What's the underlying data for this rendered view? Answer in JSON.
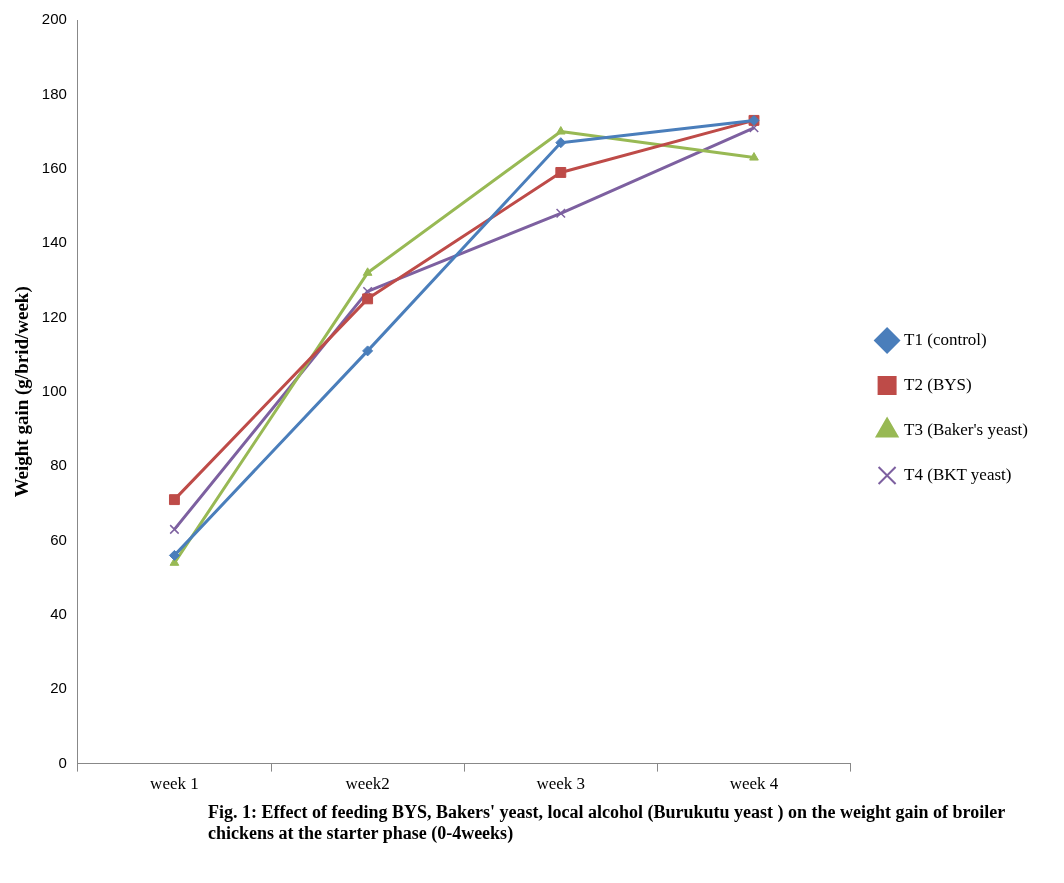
{
  "chart_data": {
    "type": "line",
    "ylabel": "Weight gain (g/brid/week)",
    "categories": [
      "week 1",
      "week2",
      "week 3",
      "week 4"
    ],
    "series": [
      {
        "name": "T1 (control)",
        "color": "#4a7ebb",
        "marker": "diamond",
        "values": [
          56,
          111,
          167,
          173
        ]
      },
      {
        "name": "T2 (BYS)",
        "color": "#be4b48",
        "marker": "square",
        "values": [
          71,
          125,
          159,
          173
        ]
      },
      {
        "name": "T3 (Baker's yeast)",
        "color": "#98b954",
        "marker": "triangle",
        "values": [
          54,
          132,
          170,
          163
        ]
      },
      {
        "name": "T4 (BKT yeast)",
        "color": "#7d60a0",
        "marker": "cross",
        "values": [
          63,
          127,
          148,
          171
        ]
      }
    ],
    "ylim": [
      0,
      200
    ],
    "yticks": [
      0,
      20,
      40,
      60,
      80,
      100,
      120,
      140,
      160,
      180,
      200
    ],
    "grid": false,
    "legend": "right",
    "line_style": "solid",
    "annotations": [
      "Fig. 1: Effect of feeding BYS, Bakers' yeast, local alcohol (Burukutu yeast ) on the weight gain of broiler   chickens at the starter phase (0-4weeks)"
    ]
  }
}
